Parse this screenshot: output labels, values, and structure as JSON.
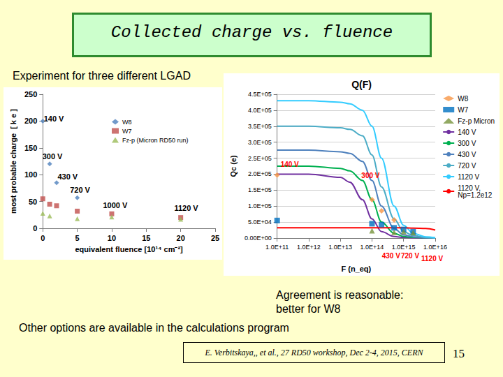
{
  "slide": {
    "title": "Collected charge vs. fluence",
    "subtitle": "Experiment for three different LGAD",
    "note": [
      "Agreement is reasonable:",
      "better for W8"
    ],
    "footer": "Other options are available in the calculations program",
    "citation": "E. Verbitskaya,, et al., 27 RD50 workshop, Dec 2-4, 2015, CERN",
    "page": 15
  },
  "chart_data": [
    {
      "type": "scatter",
      "xlabel": "equivalent fluence [10¹⁴ cm⁻²]",
      "ylabel": "most probable charge  [ k e ]",
      "xlim": [
        0,
        25
      ],
      "xticks": [
        0,
        5,
        10,
        15,
        20,
        25
      ],
      "ylim": [
        0,
        250
      ],
      "yticks": [
        0,
        50,
        100,
        150,
        200,
        250
      ],
      "grid": false,
      "legend": "upper right",
      "series": [
        {
          "name": "W8",
          "color": "#4f81bd",
          "marker": "diamond",
          "x": [
            0,
            1,
            2,
            5
          ],
          "values": [
            200,
            120,
            85,
            57
          ]
        },
        {
          "name": "W7",
          "color": "#c0504d",
          "marker": "square",
          "x": [
            0,
            1,
            2,
            5,
            10,
            20
          ],
          "values": [
            55,
            45,
            42,
            32,
            27,
            20
          ]
        },
        {
          "name": "Fz-p (Micron RD50 run)",
          "color": "#9bbb59",
          "marker": "triangle",
          "x": [
            0,
            1,
            5,
            10,
            20
          ],
          "values": [
            28,
            23,
            18,
            21,
            17
          ]
        }
      ],
      "annotations": [
        {
          "text": "140 V",
          "x": 1.6,
          "y": 205
        },
        {
          "text": "300 V",
          "x": 1.4,
          "y": 134
        },
        {
          "text": "430 V",
          "x": 3.6,
          "y": 97
        },
        {
          "text": "720 V",
          "x": 5.4,
          "y": 72
        },
        {
          "text": "1000 V",
          "x": 10.5,
          "y": 43
        },
        {
          "text": "1120 V",
          "x": 20.8,
          "y": 38
        }
      ]
    },
    {
      "type": "line",
      "title": "Q(F)",
      "xlabel": "F (n_eq)",
      "ylabel": "Qc (e)",
      "log": "x",
      "xlim": [
        100000000000,
        10000000000000000
      ],
      "xticks": [
        {
          "value": 100000000000,
          "label": "1.0E+11"
        },
        {
          "value": 1000000000000,
          "label": "1.0E+12"
        },
        {
          "value": 10000000000000,
          "label": "1.0E+13"
        },
        {
          "value": 100000000000000,
          "label": "1.0E+14"
        },
        {
          "value": 1000000000000000,
          "label": "1.0E+15"
        },
        {
          "value": 10000000000000000,
          "label": "1.0E+16"
        }
      ],
      "ylim": [
        0,
        450000
      ],
      "yticks": [
        {
          "value": 0,
          "label": "0.00E+00"
        },
        {
          "value": 50000,
          "label": "5.0E+04"
        },
        {
          "value": 100000,
          "label": "1.0E+05"
        },
        {
          "value": 150000,
          "label": "1.5E+05"
        },
        {
          "value": 200000,
          "label": "2.0E+05"
        },
        {
          "value": 250000,
          "label": "2.5E+05"
        },
        {
          "value": 300000,
          "label": "3.0E+05"
        },
        {
          "value": 350000,
          "label": "3.5E+05"
        },
        {
          "value": 400000,
          "label": "4.0E+05"
        },
        {
          "value": 450000,
          "label": "4.5E+05"
        }
      ],
      "grid": true,
      "legend": "right",
      "series": [
        {
          "name": "W8",
          "type": "scatter",
          "color": "#f79646",
          "marker": "diamond",
          "x": [
            100000000000,
            100000000000000,
            200000000000000,
            500000000000000
          ],
          "values": [
            197000,
            120000,
            85000,
            57000
          ]
        },
        {
          "name": "W7",
          "type": "scatter",
          "color": "#0070c0",
          "marker": "square",
          "x": [
            100000000000,
            100000000000000,
            200000000000000,
            500000000000000,
            1000000000000000,
            2000000000000000
          ],
          "values": [
            55000,
            45000,
            42000,
            32000,
            27000,
            20000
          ]
        },
        {
          "name": "Fz-p Micron",
          "type": "scatter",
          "color": "#77933c",
          "marker": "triangle",
          "x": [
            100000000000000,
            500000000000000,
            1000000000000000,
            2000000000000000
          ],
          "values": [
            23000,
            18000,
            20000,
            17000
          ]
        },
        {
          "name": "140 V",
          "type": "line",
          "color": "#7030a0",
          "line_style": "solid",
          "x": [
            100000000000,
            1000000000000,
            10000000000000,
            20000000000000,
            50000000000000,
            100000000000000,
            200000000000000,
            500000000000000,
            1000000000000000,
            2000000000000000,
            5000000000000000,
            10000000000000000
          ],
          "values": [
            200000,
            200000,
            190000,
            175000,
            120000,
            60000,
            20000,
            5000,
            2000,
            1000,
            0,
            0
          ]
        },
        {
          "name": "300 V",
          "type": "line",
          "color": "#00b050",
          "line_style": "solid",
          "x": [
            100000000000,
            1000000000000,
            10000000000000,
            20000000000000,
            50000000000000,
            100000000000000,
            200000000000000,
            500000000000000,
            1000000000000000,
            2000000000000000,
            5000000000000000,
            10000000000000000
          ],
          "values": [
            225000,
            225000,
            218000,
            210000,
            180000,
            120000,
            50000,
            15000,
            5000,
            2000,
            1000,
            0
          ]
        },
        {
          "name": "430 V",
          "type": "line",
          "color": "#4f81bd",
          "line_style": "solid",
          "x": [
            100000000000,
            1000000000000,
            10000000000000,
            20000000000000,
            50000000000000,
            100000000000000,
            200000000000000,
            500000000000000,
            1000000000000000,
            2000000000000000,
            5000000000000000,
            10000000000000000
          ],
          "values": [
            275000,
            275000,
            270000,
            265000,
            240000,
            180000,
            100000,
            30000,
            10000,
            4000,
            1000,
            0
          ]
        },
        {
          "name": "720 V",
          "type": "line",
          "color": "#4bacc6",
          "line_style": "solid",
          "x": [
            100000000000,
            1000000000000,
            10000000000000,
            20000000000000,
            50000000000000,
            100000000000000,
            200000000000000,
            500000000000000,
            1000000000000000,
            2000000000000000,
            5000000000000000,
            10000000000000000
          ],
          "values": [
            350000,
            350000,
            345000,
            340000,
            320000,
            260000,
            160000,
            60000,
            20000,
            8000,
            2000,
            0
          ]
        },
        {
          "name": "1120 V",
          "type": "line",
          "color": "#33ccff",
          "line_style": "solid",
          "x": [
            100000000000,
            1000000000000,
            10000000000000,
            20000000000000,
            50000000000000,
            100000000000000,
            200000000000000,
            500000000000000,
            1000000000000000,
            2000000000000000,
            5000000000000000,
            10000000000000000
          ],
          "values": [
            430000,
            430000,
            425000,
            420000,
            400000,
            350000,
            250000,
            100000,
            40000,
            15000,
            4000,
            1000
          ]
        },
        {
          "name": "1120 V, Np=1.2e12",
          "type": "line",
          "color": "#ff0000",
          "line_style": "solid",
          "x": [
            100000000000,
            1000000000000,
            10000000000000,
            100000000000000,
            1000000000000000,
            2000000000000000,
            5000000000000000,
            10000000000000000
          ],
          "values": [
            32000,
            32000,
            32000,
            32000,
            32000,
            31000,
            30000,
            25000
          ]
        }
      ],
      "annotations": [
        {
          "text": "140 V",
          "x": 250000000000,
          "y": 230000
        },
        {
          "text": "300 V",
          "x": 90000000000000,
          "y": 195000
        },
        {
          "text": "430 V",
          "x": 400000000000000,
          "y": -55000
        },
        {
          "text": "720 V",
          "x": 1600000000000000,
          "y": -55000
        },
        {
          "text": "1120 V",
          "x": 8000000000000000,
          "y": -65000
        }
      ]
    }
  ]
}
